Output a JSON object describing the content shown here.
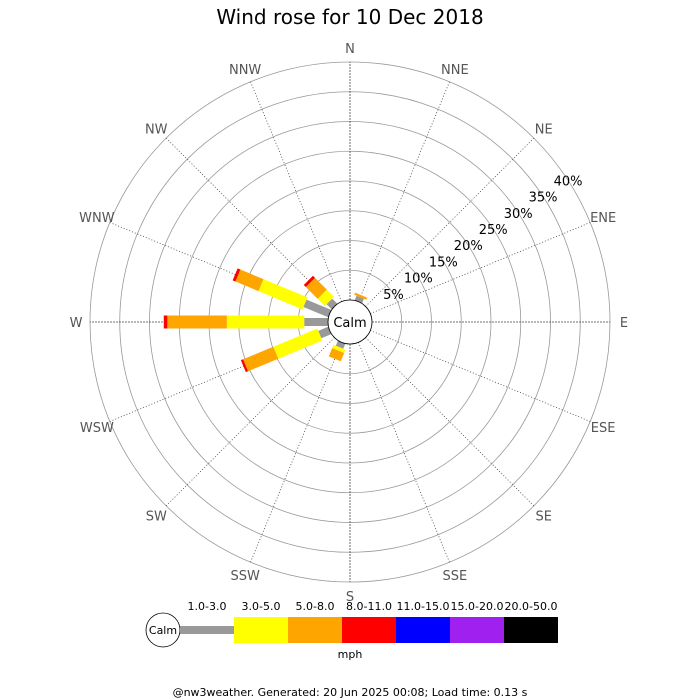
{
  "chart_data": {
    "type": "windrose",
    "title": "Wind rose for 10 Dec 2018",
    "directions": [
      "N",
      "NNE",
      "NE",
      "ENE",
      "E",
      "ESE",
      "SE",
      "SSE",
      "S",
      "SSW",
      "SW",
      "WSW",
      "W",
      "WNW",
      "NW",
      "NNW"
    ],
    "radial_ticks": [
      5,
      10,
      15,
      20,
      25,
      30,
      35,
      40
    ],
    "radial_tick_labels": [
      "5%",
      "10%",
      "15%",
      "20%",
      "25%",
      "30%",
      "35%",
      "40%"
    ],
    "radial_max": 40,
    "calm_label": "Calm",
    "speed_bins": [
      {
        "label": "Calm",
        "color": "#999999"
      },
      {
        "label": "1.0-3.0",
        "color": "#999999"
      },
      {
        "label": "3.0-5.0",
        "color": "#ffff00"
      },
      {
        "label": "5.0-8.0",
        "color": "#ffa500"
      },
      {
        "label": "8.0-11.0",
        "color": "#ff0000"
      },
      {
        "label": "11.0-15.0",
        "color": "#0000ff"
      },
      {
        "label": "15.0-20.0",
        "color": "#a020f0"
      },
      {
        "label": "20.0-50.0",
        "color": "#000000"
      }
    ],
    "speed_unit": "mph",
    "frequencies": {
      "NNE": [
        0.8,
        0.0,
        0.4,
        0.0,
        0,
        0,
        0
      ],
      "SSW": [
        0.9,
        0.6,
        1.5,
        0.0,
        0,
        0,
        0
      ],
      "WSW": [
        1.8,
        8.0,
        5.5,
        0.4,
        0,
        0,
        0
      ],
      "W": [
        4.0,
        13.0,
        10.0,
        0.6,
        0,
        0,
        0
      ],
      "WNW": [
        4.5,
        8.0,
        4.2,
        0.5,
        0,
        0,
        0
      ],
      "NW": [
        1.2,
        1.7,
        2.8,
        0.5,
        0,
        0,
        0
      ]
    }
  },
  "footer": "@nw3weather. Generated: 20 Jun 2025 00:08; Load time: 0.13 s"
}
